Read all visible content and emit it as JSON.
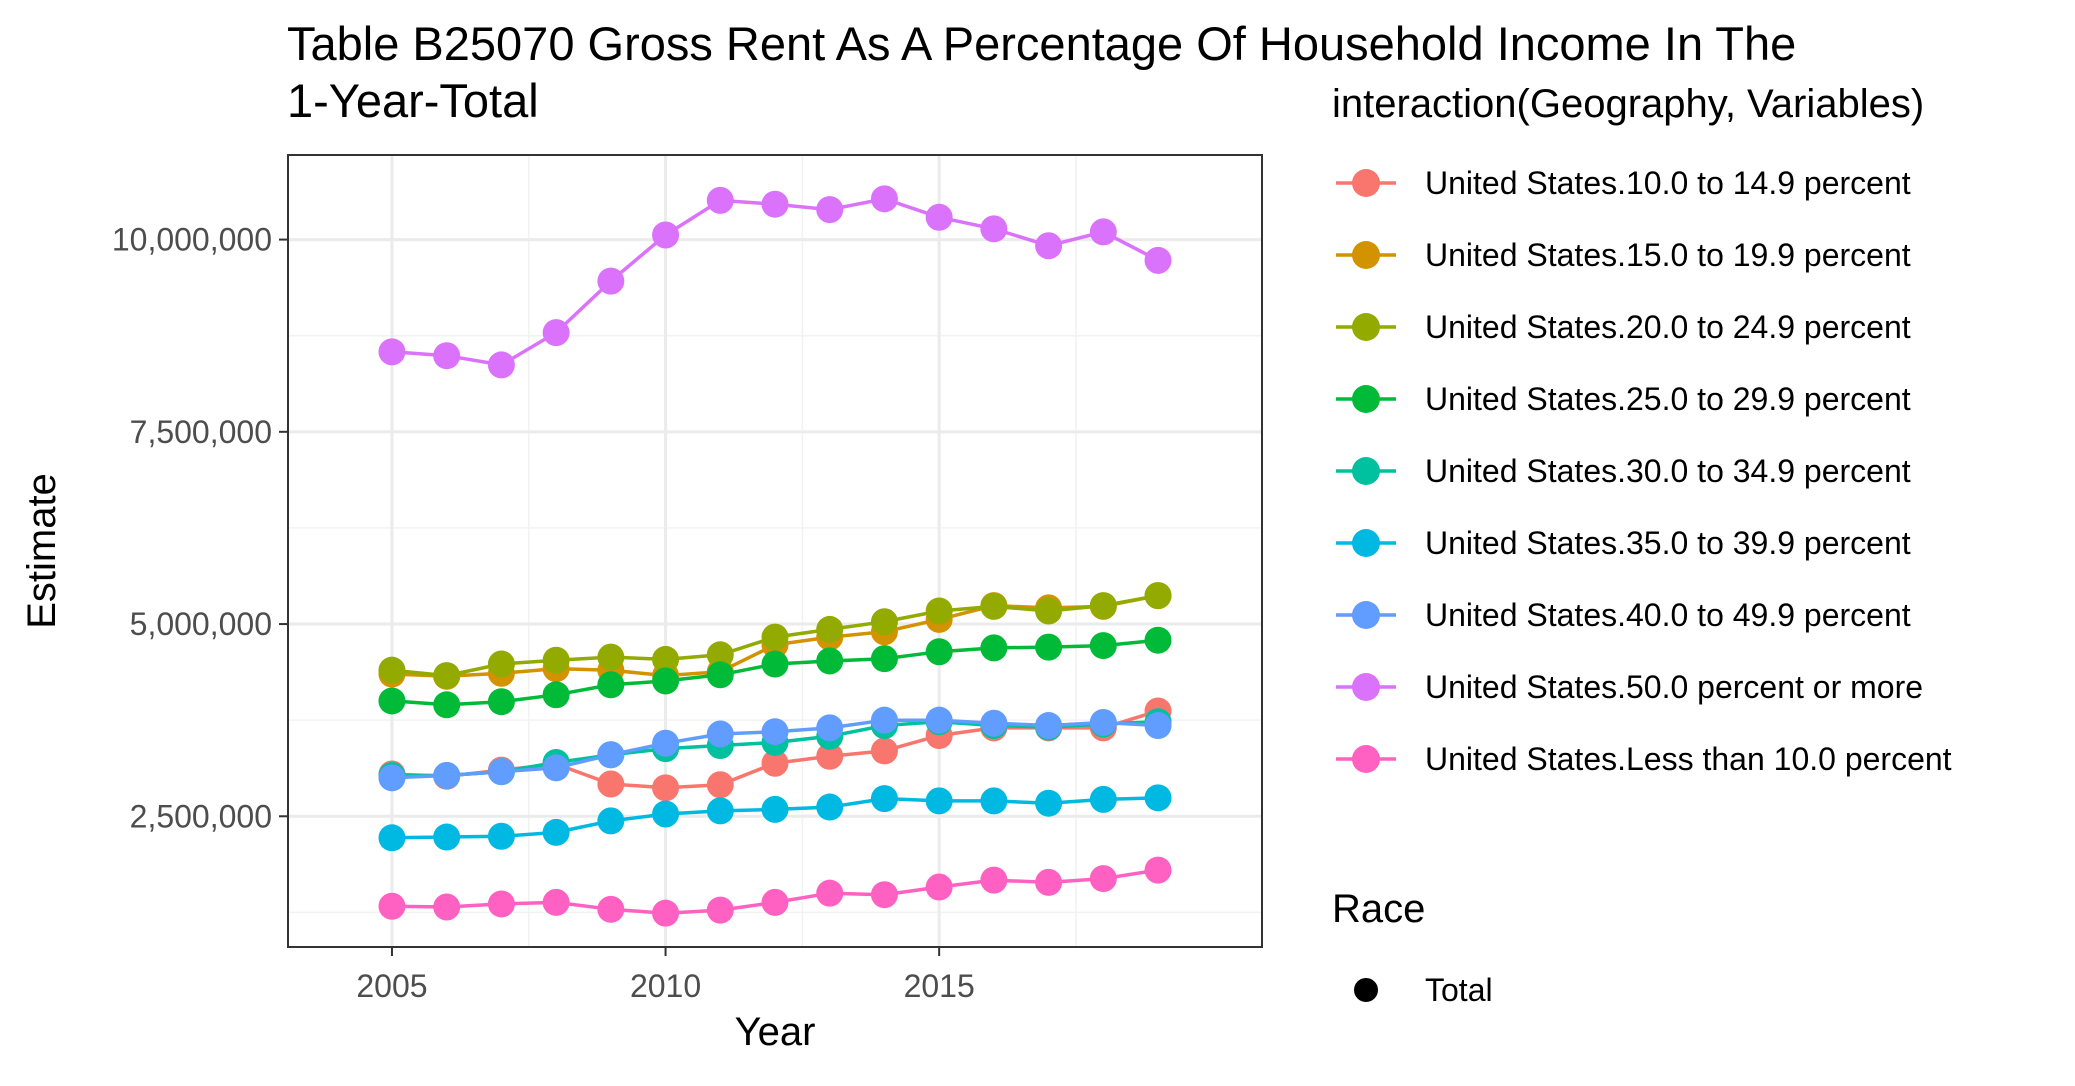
{
  "chart_data": {
    "type": "line",
    "title": "Table B25070 Gross Rent As A Percentage Of Household Income In The",
    "subtitle": "1-Year-Total",
    "xlabel": "Year",
    "ylabel": "Estimate",
    "xlim": [
      2003.1,
      2020.9
    ],
    "ylim": [
      800000,
      11100000
    ],
    "x_ticks": [
      2005,
      2010,
      2015
    ],
    "y_ticks": [
      2500000,
      5000000,
      7500000,
      10000000
    ],
    "y_tick_labels": [
      "2,500,000",
      "5,000,000",
      "7,500,000",
      "10,000,000"
    ],
    "grid": true,
    "legend_position": "right",
    "legend_title": "interaction(Geography, Variables)",
    "shape_legend_title": "Race",
    "shape_legend_items": [
      "Total"
    ],
    "x": [
      2005,
      2006,
      2007,
      2008,
      2009,
      2010,
      2011,
      2012,
      2013,
      2014,
      2015,
      2016,
      2017,
      2018,
      2019
    ],
    "series": [
      {
        "name": "United States.10.0 to 14.9 percent",
        "color": "#F8766D",
        "values": [
          3050000,
          3020000,
          3100000,
          3180000,
          2920000,
          2870000,
          2910000,
          3190000,
          3280000,
          3350000,
          3550000,
          3650000,
          3650000,
          3650000,
          3870000
        ]
      },
      {
        "name": "United States.15.0 to 19.9 percent",
        "color": "#D39200",
        "values": [
          4350000,
          4320000,
          4360000,
          4420000,
          4400000,
          4330000,
          4380000,
          4730000,
          4830000,
          4900000,
          5060000,
          5240000,
          5210000,
          5230000,
          5370000
        ]
      },
      {
        "name": "United States.20.0 to 24.9 percent",
        "color": "#93AA00",
        "values": [
          4400000,
          4330000,
          4480000,
          4530000,
          4570000,
          4540000,
          4600000,
          4830000,
          4930000,
          5030000,
          5170000,
          5230000,
          5170000,
          5240000,
          5370000
        ]
      },
      {
        "name": "United States.25.0 to 29.9 percent",
        "color": "#00BA38",
        "values": [
          4000000,
          3950000,
          3990000,
          4080000,
          4210000,
          4260000,
          4340000,
          4480000,
          4520000,
          4550000,
          4640000,
          4690000,
          4700000,
          4720000,
          4790000
        ]
      },
      {
        "name": "United States.30.0 to 34.9 percent",
        "color": "#00C19F",
        "values": [
          3030000,
          3030000,
          3080000,
          3200000,
          3300000,
          3380000,
          3420000,
          3460000,
          3540000,
          3680000,
          3730000,
          3680000,
          3660000,
          3700000,
          3730000
        ]
      },
      {
        "name": "United States.35.0 to 39.9 percent",
        "color": "#00B9E3",
        "values": [
          2220000,
          2230000,
          2240000,
          2290000,
          2440000,
          2530000,
          2570000,
          2590000,
          2620000,
          2730000,
          2700000,
          2700000,
          2670000,
          2720000,
          2740000
        ]
      },
      {
        "name": "United States.40.0 to 49.9 percent",
        "color": "#619CFF",
        "values": [
          3000000,
          3030000,
          3080000,
          3130000,
          3300000,
          3450000,
          3570000,
          3600000,
          3650000,
          3750000,
          3750000,
          3710000,
          3680000,
          3720000,
          3680000
        ]
      },
      {
        "name": "United States.50.0 percent or more",
        "color": "#DB72FB",
        "values": [
          8540000,
          8490000,
          8370000,
          8790000,
          9460000,
          10060000,
          10510000,
          10460000,
          10390000,
          10530000,
          10290000,
          10140000,
          9920000,
          10100000,
          9730000
        ]
      },
      {
        "name": "United States.Less than 10.0 percent",
        "color": "#FF61C3",
        "values": [
          1330000,
          1320000,
          1360000,
          1380000,
          1290000,
          1240000,
          1280000,
          1380000,
          1500000,
          1480000,
          1580000,
          1670000,
          1640000,
          1690000,
          1800000
        ]
      }
    ]
  }
}
